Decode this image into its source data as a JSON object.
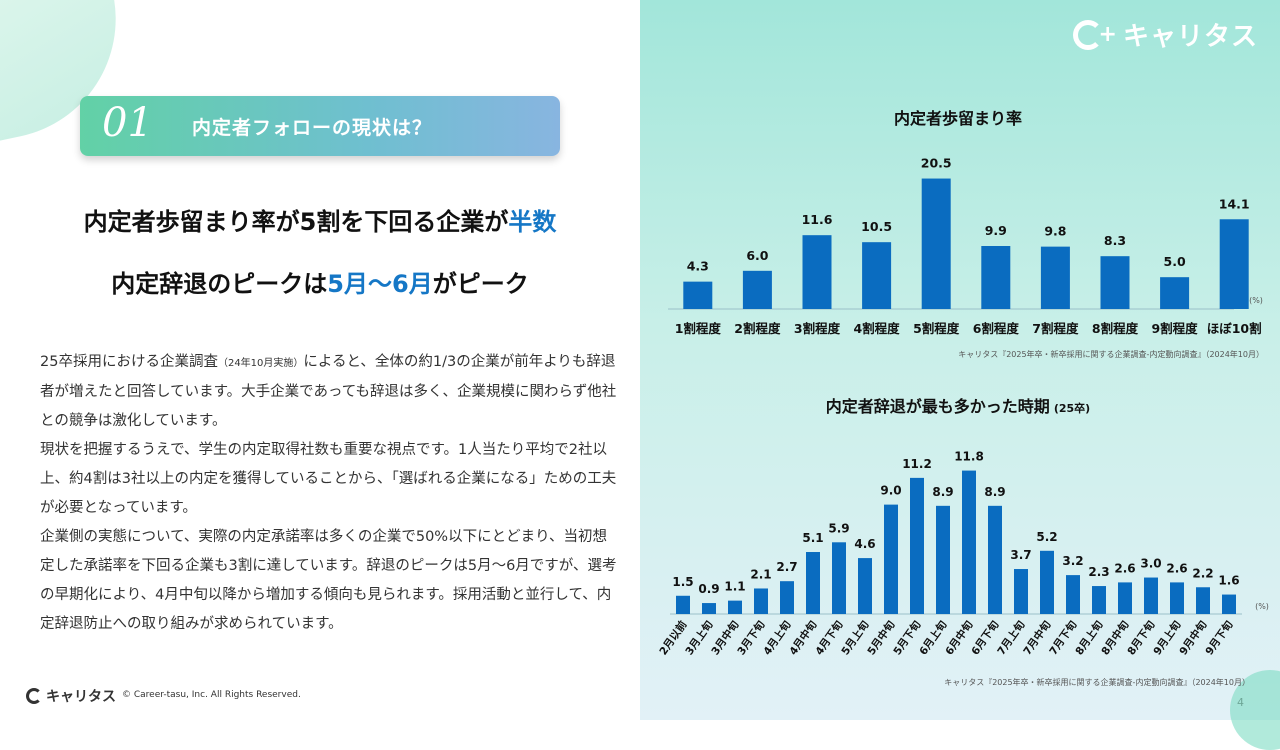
{
  "page": {
    "section_number": "01",
    "section_title": "内定者フォローの現状は？",
    "headline1_pre": "内定者歩留まり率が5割を下回る企業が",
    "headline1_emph": "半数",
    "headline2_pre": "内定辞退のピークは",
    "headline2_emph": "5月～6月",
    "headline2_post": "がピーク",
    "body": [
      {
        "text": "25卒採用における企業調査",
        "small": "（24年10月実施）",
        "rest": "によると、全体の約1/3の企業が前年よりも辞退者が増えたと回答しています。大手企業であっても辞退は多く、企業規模に関わらず他社との競争は激化しています。"
      },
      {
        "text": "現状を把握するうえで、学生の内定取得社数も重要な視点です。1人当たり平均で2社以上、約4割は3社以上の内定を獲得していることから、「選ばれる企業になる」ための工夫が必要となっています。",
        "small": "",
        "rest": ""
      },
      {
        "text": "企業側の実態について、実際の内定承諾率は多くの企業で50%以下にとどまり、当初想定した承諾率を下回る企業も3割に達しています。辞退のピークは5月～6月ですが、選考の早期化により、4月中旬以降から増加する傾向も見られます。採用活動と並行して、内定辞退防止への取り組みが求められています。",
        "small": "",
        "rest": ""
      }
    ],
    "brand_name": "キャリタス",
    "copyright": "© Career-tasu, Inc. All Rights Reserved.",
    "page_number": "4",
    "colors": {
      "accent": "#1577c6",
      "bar": "#0a6cc0"
    }
  },
  "chart_data": [
    {
      "type": "bar",
      "title": "内定者歩留まり率",
      "unit": "(%)",
      "source": "キャリタス『2025年卒・新卒採用に関する企業調査-内定動向調査』（2024年10月）",
      "categories": [
        "1割程度",
        "2割程度",
        "3割程度",
        "4割程度",
        "5割程度",
        "6割程度",
        "7割程度",
        "8割程度",
        "9割程度",
        "ほぼ10割"
      ],
      "values": [
        4.3,
        6.0,
        11.6,
        10.5,
        20.5,
        9.9,
        9.8,
        8.3,
        5.0,
        14.1
      ],
      "value_labels": [
        "4.3",
        "6.0",
        "11.6",
        "10.5",
        "20.5",
        "9.9",
        "9.8",
        "8.3",
        "5.0",
        "14.1"
      ],
      "ylim": [
        0,
        22
      ]
    },
    {
      "type": "bar",
      "title": "内定者辞退が最も多かった時期",
      "subtitle": "(25卒)",
      "unit": "(%)",
      "source": "キャリタス『2025年卒・新卒採用に関する企業調査-内定動向調査』（2024年10月）",
      "categories": [
        "2月以前",
        "3月上旬",
        "3月中旬",
        "3月下旬",
        "4月上旬",
        "4月中旬",
        "4月下旬",
        "5月上旬",
        "5月中旬",
        "5月下旬",
        "6月上旬",
        "6月中旬",
        "6月下旬",
        "7月上旬",
        "7月中旬",
        "7月下旬",
        "8月上旬",
        "8月中旬",
        "8月下旬",
        "9月上旬",
        "9月中旬",
        "9月下旬"
      ],
      "values": [
        1.5,
        0.9,
        1.1,
        2.1,
        2.7,
        5.1,
        5.9,
        4.6,
        9.0,
        11.2,
        8.9,
        11.8,
        8.9,
        3.7,
        5.2,
        3.2,
        2.3,
        2.6,
        3.0,
        2.6,
        2.2,
        1.6
      ],
      "value_labels": [
        "1.5",
        "0.9",
        "1.1",
        "2.1",
        "2.7",
        "5.1",
        "5.9",
        "4.6",
        "9.0",
        "11.2",
        "8.9",
        "11.8",
        "8.9",
        "3.7",
        "5.2",
        "3.2",
        "2.3",
        "2.6",
        "3.0",
        "2.6",
        "2.2",
        "1.6"
      ],
      "ylim": [
        0,
        13
      ]
    }
  ]
}
